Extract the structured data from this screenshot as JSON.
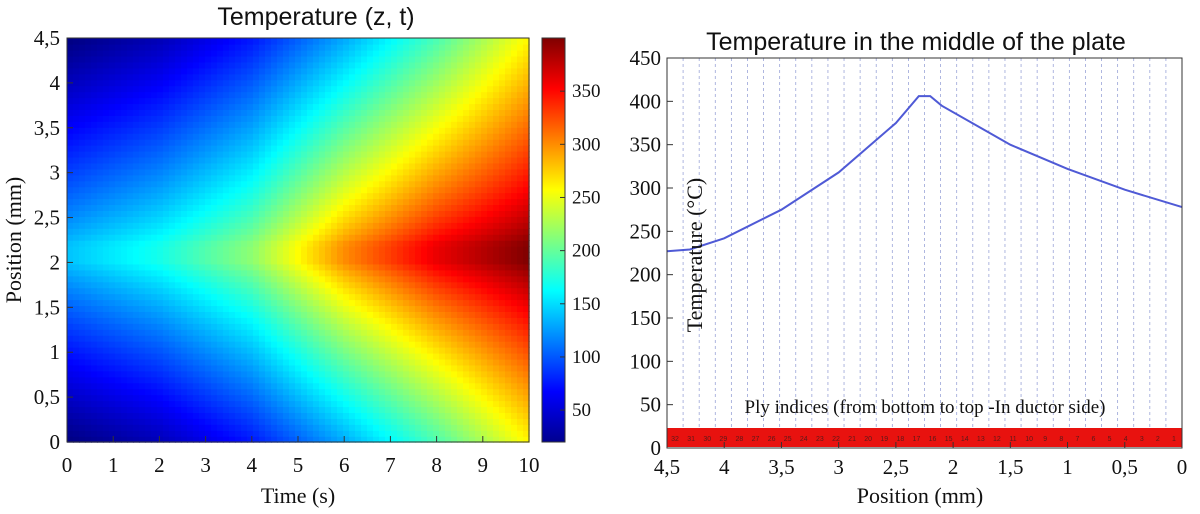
{
  "chart_data": [
    {
      "type": "heatmap",
      "title": "Temperature (z, t)",
      "xlabel": "Time (s)",
      "ylabel": "Position  (mm)",
      "xlim": [
        0,
        10
      ],
      "ylim": [
        0,
        4.5
      ],
      "x_ticks": [
        "0",
        "1",
        "2",
        "3",
        "4",
        "5",
        "6",
        "7",
        "8",
        "9",
        "10"
      ],
      "y_ticks": [
        "0",
        "0,5",
        "1",
        "1,5",
        "2",
        "2,5",
        "3",
        "3,5",
        "4",
        "4,5"
      ],
      "x_tick_values": [
        0,
        1,
        2,
        3,
        4,
        5,
        6,
        7,
        8,
        9,
        10
      ],
      "y_tick_values": [
        0,
        0.5,
        1,
        1.5,
        2,
        2.5,
        3,
        3.5,
        4,
        4.5
      ],
      "colorbar": {
        "range": [
          20,
          400
        ],
        "ticks": [
          "50",
          "100",
          "150",
          "200",
          "250",
          "300",
          "350"
        ],
        "tick_values": [
          50,
          100,
          150,
          200,
          250,
          300,
          350
        ],
        "colormap": "jet"
      },
      "heat_source_position": 2.1,
      "heat_source_width": 0.1,
      "temperature_at_source": {
        "t": [
          0,
          2,
          4,
          6,
          8,
          10
        ],
        "values": [
          140,
          170,
          215,
          300,
          360,
          400
        ]
      },
      "temperature_at_edges": {
        "t": [
          0,
          2,
          4,
          6,
          8,
          10
        ],
        "values": [
          20,
          40,
          75,
          130,
          190,
          260
        ]
      }
    },
    {
      "type": "line",
      "title": "Temperature in the middle of the plate",
      "xlabel": "Position (mm)",
      "ylabel": "Temperature (°C)",
      "xlim": [
        4.5,
        0
      ],
      "ylim": [
        0,
        450
      ],
      "x_ticks": [
        "4,5",
        "4",
        "3,5",
        "3",
        "2,5",
        "2",
        "1,5",
        "1",
        "0,5",
        "0"
      ],
      "x_tick_values": [
        4.5,
        4,
        3.5,
        3,
        2.5,
        2,
        1.5,
        1,
        0.5,
        0
      ],
      "y_ticks": [
        "0",
        "50",
        "100",
        "150",
        "200",
        "250",
        "300",
        "350",
        "400",
        "450"
      ],
      "y_tick_values": [
        0,
        50,
        100,
        150,
        200,
        250,
        300,
        350,
        400,
        450
      ],
      "grid": "vertical-dashed",
      "series": [
        {
          "color": "#4f5ad6",
          "x": [
            4.5,
            4.3,
            4.0,
            3.5,
            3.0,
            2.5,
            2.3,
            2.2,
            2.1,
            1.5,
            1.0,
            0.5,
            0.0
          ],
          "y": [
            227,
            229,
            242,
            275,
            318,
            375,
            406,
            406,
            395,
            350,
            322,
            298,
            278
          ]
        }
      ],
      "annotation": "Ply indices (from bottom to top -In ductor side)",
      "ply_band": {
        "color": "#e8120f",
        "indices": [
          "32",
          "31",
          "30",
          "29",
          "28",
          "27",
          "26",
          "25",
          "24",
          "23",
          "22",
          "21",
          "20",
          "19",
          "18",
          "17",
          "16",
          "15",
          "14",
          "13",
          "12",
          "11",
          "10",
          "9",
          "8",
          "7",
          "6",
          "5",
          "4",
          "3",
          "2",
          "1"
        ]
      }
    }
  ]
}
